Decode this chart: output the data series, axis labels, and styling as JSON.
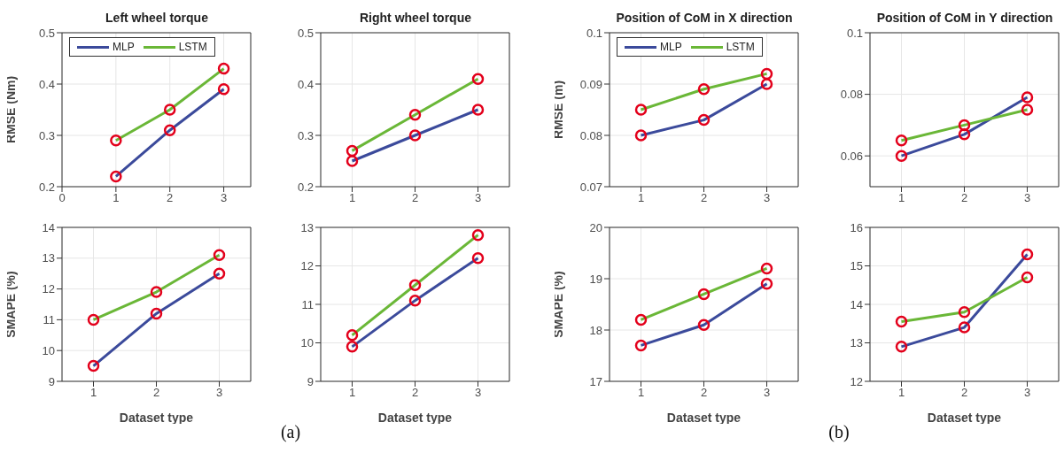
{
  "chart_data": [
    {
      "type": "line",
      "title": "Left wheel torque",
      "ylabel": "RMSE (Nm)",
      "x": [
        1,
        2,
        3
      ],
      "xlim": [
        0,
        3.5
      ],
      "xticks": [
        0,
        1,
        2,
        3
      ],
      "ylim": [
        0.2,
        0.5
      ],
      "yticks": [
        0.2,
        0.3,
        0.4,
        0.5
      ],
      "grid": true,
      "legend": "top left",
      "line_style": "solid",
      "series": [
        {
          "name": "MLP",
          "color": "#3b4a9b",
          "marker": "none",
          "values": [
            0.22,
            0.31,
            0.39
          ]
        },
        {
          "name": "LSTM",
          "color": "#6ab737",
          "marker": "none",
          "values": [
            0.29,
            0.35,
            0.43
          ]
        },
        {
          "type": "scatter",
          "color": "#e3001b",
          "marker": "circle",
          "values": [
            0.22,
            0.31,
            0.39
          ]
        },
        {
          "type": "scatter",
          "color": "#e3001b",
          "marker": "circle",
          "values": [
            0.29,
            0.35,
            0.43
          ]
        }
      ]
    },
    {
      "type": "line",
      "title": "Right wheel torque",
      "x": [
        1,
        2,
        3
      ],
      "xlim": [
        0.5,
        3.5
      ],
      "xticks": [
        1,
        2,
        3
      ],
      "ylim": [
        0.2,
        0.5
      ],
      "yticks": [
        0.2,
        0.3,
        0.4,
        0.5
      ],
      "grid": true,
      "line_style": "solid",
      "series": [
        {
          "color": "#3b4a9b",
          "marker": "none",
          "values": [
            0.25,
            0.3,
            0.35
          ]
        },
        {
          "color": "#6ab737",
          "marker": "none",
          "values": [
            0.27,
            0.34,
            0.41
          ]
        },
        {
          "type": "scatter",
          "color": "#e3001b",
          "marker": "circle",
          "values": [
            0.25,
            0.3,
            0.35
          ]
        },
        {
          "type": "scatter",
          "color": "#e3001b",
          "marker": "circle",
          "values": [
            0.27,
            0.34,
            0.41
          ]
        }
      ]
    },
    {
      "type": "line",
      "title": "Position of CoM in X direction",
      "ylabel": "RMSE (m)",
      "x": [
        1,
        2,
        3
      ],
      "xlim": [
        0.5,
        3.5
      ],
      "xticks": [
        1,
        2,
        3
      ],
      "ylim": [
        0.07,
        0.1
      ],
      "yticks": [
        0.07,
        0.08,
        0.09,
        0.1
      ],
      "grid": true,
      "legend": "top left",
      "line_style": "solid",
      "series": [
        {
          "name": "MLP",
          "color": "#3b4a9b",
          "marker": "none",
          "values": [
            0.08,
            0.083,
            0.09
          ]
        },
        {
          "name": "LSTM",
          "color": "#6ab737",
          "marker": "none",
          "values": [
            0.085,
            0.089,
            0.092
          ]
        },
        {
          "type": "scatter",
          "color": "#e3001b",
          "marker": "circle",
          "values": [
            0.08,
            0.083,
            0.09
          ]
        },
        {
          "type": "scatter",
          "color": "#e3001b",
          "marker": "circle",
          "values": [
            0.085,
            0.089,
            0.092
          ]
        }
      ]
    },
    {
      "type": "line",
      "title": "Position of CoM in Y direction",
      "x": [
        1,
        2,
        3
      ],
      "xlim": [
        0.5,
        3.5
      ],
      "xticks": [
        1,
        2,
        3
      ],
      "ylim": [
        0.05,
        0.1
      ],
      "yticks": [
        0.06,
        0.08,
        0.1
      ],
      "grid": true,
      "line_style": "solid",
      "series": [
        {
          "color": "#3b4a9b",
          "marker": "none",
          "values": [
            0.06,
            0.067,
            0.079
          ]
        },
        {
          "color": "#6ab737",
          "marker": "none",
          "values": [
            0.065,
            0.07,
            0.075
          ]
        },
        {
          "type": "scatter",
          "color": "#e3001b",
          "marker": "circle",
          "values": [
            0.06,
            0.067,
            0.079
          ]
        },
        {
          "type": "scatter",
          "color": "#e3001b",
          "marker": "circle",
          "values": [
            0.065,
            0.07,
            0.075
          ]
        }
      ]
    },
    {
      "type": "line",
      "ylabel": "SMAPE (%)",
      "xlabel": "Dataset type",
      "annotations": [
        "(a)"
      ],
      "x": [
        1,
        2,
        3
      ],
      "xlim": [
        0.5,
        3.5
      ],
      "xticks": [
        1,
        2,
        3
      ],
      "ylim": [
        9,
        14
      ],
      "yticks": [
        9,
        10,
        11,
        12,
        13,
        14
      ],
      "grid": true,
      "line_style": "solid",
      "series": [
        {
          "color": "#3b4a9b",
          "marker": "none",
          "values": [
            9.5,
            11.2,
            12.5
          ]
        },
        {
          "color": "#6ab737",
          "marker": "none",
          "values": [
            11.0,
            11.9,
            13.1
          ]
        },
        {
          "type": "scatter",
          "color": "#e3001b",
          "marker": "circle",
          "values": [
            9.5,
            11.2,
            12.5
          ]
        },
        {
          "type": "scatter",
          "color": "#e3001b",
          "marker": "circle",
          "values": [
            11.0,
            11.9,
            13.1
          ]
        }
      ]
    },
    {
      "type": "line",
      "xlabel": "Dataset type",
      "x": [
        1,
        2,
        3
      ],
      "xlim": [
        0.5,
        3.5
      ],
      "xticks": [
        1,
        2,
        3
      ],
      "ylim": [
        9,
        13
      ],
      "yticks": [
        9,
        10,
        11,
        12,
        13
      ],
      "grid": true,
      "line_style": "solid",
      "series": [
        {
          "color": "#3b4a9b",
          "marker": "none",
          "values": [
            9.9,
            11.1,
            12.2
          ]
        },
        {
          "color": "#6ab737",
          "marker": "none",
          "values": [
            10.2,
            11.5,
            12.8
          ]
        },
        {
          "type": "scatter",
          "color": "#e3001b",
          "marker": "circle",
          "values": [
            9.9,
            11.1,
            12.2
          ]
        },
        {
          "type": "scatter",
          "color": "#e3001b",
          "marker": "circle",
          "values": [
            10.2,
            11.5,
            12.8
          ]
        }
      ]
    },
    {
      "type": "line",
      "ylabel": "SMAPE (%)",
      "xlabel": "Dataset type",
      "annotations": [
        "(b)"
      ],
      "x": [
        1,
        2,
        3
      ],
      "xlim": [
        0.5,
        3.5
      ],
      "xticks": [
        1,
        2,
        3
      ],
      "ylim": [
        17,
        20
      ],
      "yticks": [
        17,
        18,
        19,
        20
      ],
      "grid": true,
      "line_style": "solid",
      "series": [
        {
          "color": "#3b4a9b",
          "marker": "none",
          "values": [
            17.7,
            18.1,
            18.9
          ]
        },
        {
          "color": "#6ab737",
          "marker": "none",
          "values": [
            18.2,
            18.7,
            19.2
          ]
        },
        {
          "type": "scatter",
          "color": "#e3001b",
          "marker": "circle",
          "values": [
            17.7,
            18.1,
            18.9
          ]
        },
        {
          "type": "scatter",
          "color": "#e3001b",
          "marker": "circle",
          "values": [
            18.2,
            18.7,
            19.2
          ]
        }
      ]
    },
    {
      "type": "line",
      "xlabel": "Dataset type",
      "x": [
        1,
        2,
        3
      ],
      "xlim": [
        0.5,
        3.5
      ],
      "xticks": [
        1,
        2,
        3
      ],
      "ylim": [
        12,
        16
      ],
      "yticks": [
        12,
        13,
        14,
        15,
        16
      ],
      "grid": true,
      "line_style": "solid",
      "series": [
        {
          "color": "#3b4a9b",
          "marker": "none",
          "values": [
            12.9,
            13.4,
            15.3
          ]
        },
        {
          "color": "#6ab737",
          "marker": "none",
          "values": [
            13.55,
            13.8,
            14.7
          ]
        },
        {
          "type": "scatter",
          "color": "#e3001b",
          "marker": "circle",
          "values": [
            12.9,
            13.4,
            15.3
          ]
        },
        {
          "type": "scatter",
          "color": "#e3001b",
          "marker": "circle",
          "values": [
            13.55,
            13.8,
            14.7
          ]
        }
      ]
    }
  ]
}
